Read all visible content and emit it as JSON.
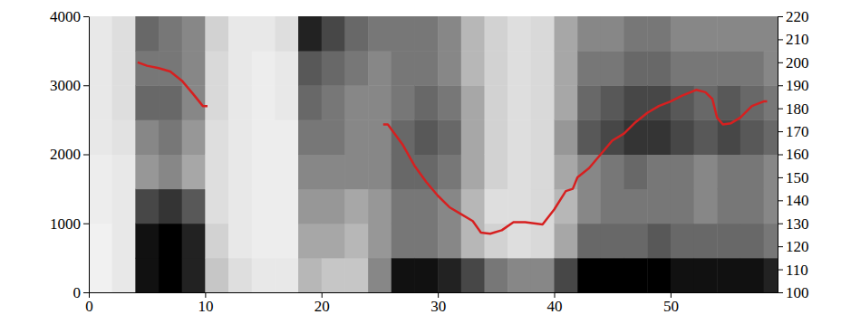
{
  "chart_data": {
    "type": "heatmap",
    "xlim": [
      0,
      59.2
    ],
    "xticks": [
      0,
      10,
      20,
      30,
      40,
      50
    ],
    "ylim": [
      0,
      4000
    ],
    "yticks": [
      0,
      1000,
      2000,
      3000,
      4000
    ],
    "y2lim": [
      100,
      220
    ],
    "y2ticks": [
      100,
      110,
      120,
      130,
      140,
      150,
      160,
      170,
      180,
      190,
      200,
      210,
      220
    ],
    "x_bins": [
      0,
      2,
      4,
      6,
      8,
      10,
      12,
      14,
      16,
      18,
      20,
      22,
      24,
      26,
      28,
      30,
      32,
      34,
      36,
      38,
      40,
      42,
      44,
      46,
      48,
      50,
      52,
      54,
      56,
      58,
      59.2
    ],
    "y_bins": [
      0,
      500,
      1000,
      1500,
      2000,
      2500,
      3000,
      3500,
      4000
    ],
    "cells": [
      [
        0.1,
        0.1,
        0.12,
        0.12,
        0.15,
        0.15,
        0.15,
        0.15
      ],
      [
        0.15,
        0.15,
        0.15,
        0.15,
        0.18,
        0.2,
        0.2,
        0.2
      ],
      [
        0.85,
        0.85,
        0.7,
        0.45,
        0.5,
        0.6,
        0.55,
        0.6
      ],
      [
        0.9,
        0.9,
        0.75,
        0.5,
        0.55,
        0.6,
        0.55,
        0.55
      ],
      [
        0.8,
        0.8,
        0.65,
        0.4,
        0.45,
        0.5,
        0.5,
        0.5
      ],
      [
        0.3,
        0.25,
        0.2,
        0.2,
        0.2,
        0.22,
        0.22,
        0.25
      ],
      [
        0.2,
        0.15,
        0.15,
        0.15,
        0.15,
        0.15,
        0.15,
        0.15
      ],
      [
        0.15,
        0.12,
        0.12,
        0.12,
        0.12,
        0.12,
        0.12,
        0.15
      ],
      [
        0.15,
        0.12,
        0.12,
        0.12,
        0.12,
        0.15,
        0.15,
        0.2
      ],
      [
        0.35,
        0.4,
        0.45,
        0.5,
        0.55,
        0.6,
        0.65,
        0.8
      ],
      [
        0.3,
        0.4,
        0.45,
        0.5,
        0.55,
        0.55,
        0.6,
        0.7
      ],
      [
        0.3,
        0.35,
        0.4,
        0.5,
        0.5,
        0.5,
        0.55,
        0.6
      ],
      [
        0.5,
        0.45,
        0.45,
        0.5,
        0.5,
        0.5,
        0.5,
        0.55
      ],
      [
        0.85,
        0.55,
        0.55,
        0.6,
        0.6,
        0.55,
        0.55,
        0.55
      ],
      [
        0.85,
        0.55,
        0.55,
        0.6,
        0.65,
        0.6,
        0.55,
        0.55
      ],
      [
        0.8,
        0.5,
        0.5,
        0.55,
        0.6,
        0.55,
        0.5,
        0.5
      ],
      [
        0.7,
        0.35,
        0.35,
        0.4,
        0.4,
        0.4,
        0.35,
        0.35
      ],
      [
        0.55,
        0.25,
        0.2,
        0.25,
        0.25,
        0.25,
        0.25,
        0.25
      ],
      [
        0.5,
        0.2,
        0.2,
        0.2,
        0.2,
        0.2,
        0.2,
        0.2
      ],
      [
        0.5,
        0.22,
        0.22,
        0.22,
        0.22,
        0.22,
        0.22,
        0.22
      ],
      [
        0.7,
        0.4,
        0.35,
        0.4,
        0.45,
        0.4,
        0.4,
        0.4
      ],
      [
        0.9,
        0.6,
        0.5,
        0.5,
        0.65,
        0.6,
        0.55,
        0.5
      ],
      [
        0.9,
        0.6,
        0.55,
        0.55,
        0.7,
        0.65,
        0.55,
        0.5
      ],
      [
        0.9,
        0.6,
        0.55,
        0.6,
        0.75,
        0.7,
        0.6,
        0.55
      ],
      [
        0.9,
        0.65,
        0.55,
        0.55,
        0.75,
        0.7,
        0.6,
        0.55
      ],
      [
        0.85,
        0.6,
        0.55,
        0.55,
        0.7,
        0.65,
        0.55,
        0.5
      ],
      [
        0.85,
        0.6,
        0.5,
        0.5,
        0.65,
        0.6,
        0.55,
        0.5
      ],
      [
        0.85,
        0.6,
        0.55,
        0.55,
        0.7,
        0.65,
        0.55,
        0.5
      ],
      [
        0.85,
        0.6,
        0.55,
        0.55,
        0.65,
        0.6,
        0.55,
        0.5
      ],
      [
        0.8,
        0.55,
        0.5,
        0.5,
        0.6,
        0.55,
        0.5,
        0.5
      ]
    ],
    "series": [
      {
        "type": "line",
        "axis": "y2",
        "color": "#d62020",
        "x": [
          4.2,
          5,
          6,
          7,
          8,
          9,
          9.8,
          10.2,
          18,
          25.3,
          25.7,
          27,
          28,
          29,
          30,
          31,
          32,
          33,
          33.7,
          34.5,
          35.5,
          36.5,
          37.5,
          39,
          40,
          41,
          41.6,
          42,
          43,
          44,
          45,
          46,
          47,
          48,
          49,
          50,
          51,
          52.2,
          53,
          53.6,
          54,
          54.5,
          55.2,
          56,
          57,
          58,
          58.3
        ],
        "values": [
          200,
          198.5,
          197.5,
          196,
          192,
          186,
          181,
          181,
          null,
          173,
          173,
          164,
          155,
          148,
          142,
          137,
          134,
          131,
          126,
          125.5,
          127,
          130.5,
          130.5,
          129.5,
          136,
          144,
          145,
          150,
          154,
          160,
          166,
          169,
          174,
          178,
          181,
          183,
          185.5,
          188,
          187,
          184,
          176,
          173,
          173.5,
          176,
          181,
          183,
          183
        ]
      }
    ]
  }
}
